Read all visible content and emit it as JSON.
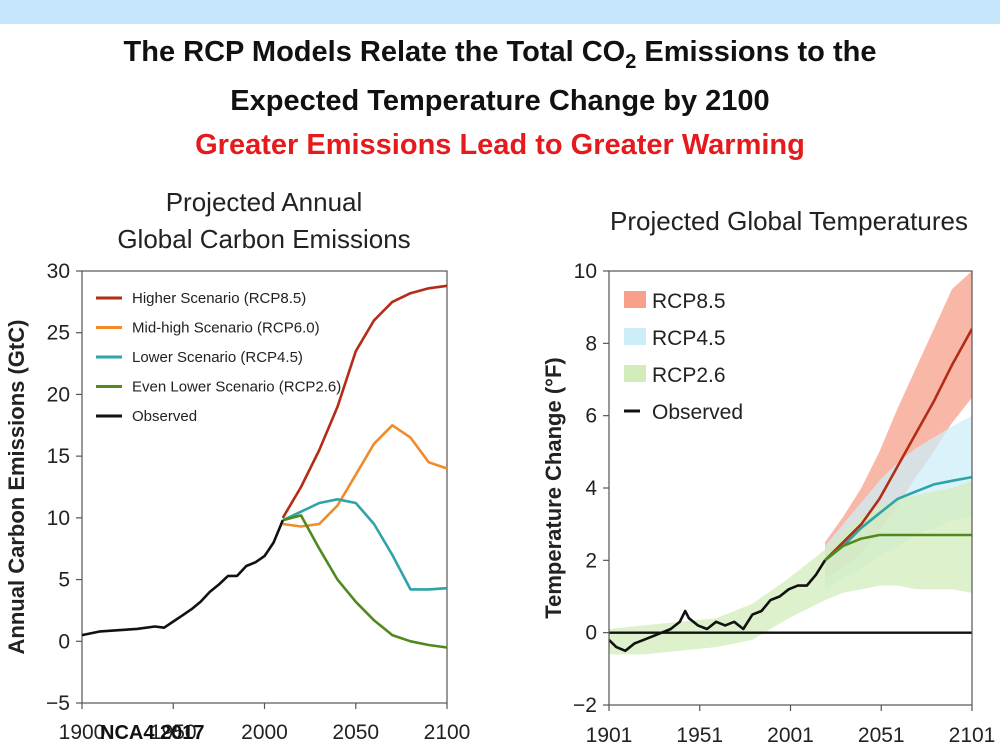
{
  "header": {
    "title_line1_pre": "The RCP Models Relate the Total CO",
    "title_sub": "2",
    "title_line1_post": " Emissions to the",
    "title_line2": "Expected Temperature Change by 2100",
    "subtitle": "Greater Emissions Lead to Greater Warming"
  },
  "colors": {
    "band": "#c6e7fb",
    "subtitle": "#e41a1c",
    "rcp85": "#b22d16",
    "rcp60": "#f28a2a",
    "rcp45": "#2ea3a8",
    "rcp26": "#4f8a1e",
    "observed": "#111111"
  },
  "credit": "NCA4 2017",
  "chart_data": [
    {
      "type": "line",
      "title_line1": "Projected Annual",
      "title_line2": "Global Carbon Emissions",
      "xlabel": "",
      "ylabel": "Annual Carbon Emissions (GtC)",
      "xlim": [
        1900,
        2100
      ],
      "ylim": [
        -5,
        30
      ],
      "xticks": [
        1900,
        1950,
        2000,
        2050,
        2100
      ],
      "yticks": [
        -5,
        0,
        5,
        10,
        15,
        20,
        25,
        30
      ],
      "ytick_labels": [
        "−5",
        "0",
        "5",
        "10",
        "15",
        "20",
        "25",
        "30"
      ],
      "grid": false,
      "legend_position": "top-left",
      "series": [
        {
          "name": "Higher Scenario (RCP8.5)",
          "color": "#b22d16",
          "x": [
            2010,
            2020,
            2030,
            2040,
            2050,
            2060,
            2070,
            2080,
            2090,
            2100
          ],
          "y": [
            10.0,
            12.5,
            15.5,
            19.0,
            23.5,
            26.0,
            27.5,
            28.2,
            28.6,
            28.8
          ]
        },
        {
          "name": "Mid-high Scenario (RCP6.0)",
          "color": "#f28a2a",
          "x": [
            2010,
            2020,
            2030,
            2040,
            2050,
            2060,
            2070,
            2080,
            2090,
            2100
          ],
          "y": [
            9.5,
            9.3,
            9.5,
            11.0,
            13.5,
            16.0,
            17.5,
            16.5,
            14.5,
            14.0
          ]
        },
        {
          "name": "Lower Scenario (RCP4.5)",
          "color": "#2ea3a8",
          "x": [
            2010,
            2020,
            2030,
            2040,
            2050,
            2060,
            2070,
            2080,
            2090,
            2100
          ],
          "y": [
            9.8,
            10.5,
            11.2,
            11.5,
            11.2,
            9.5,
            7.0,
            4.2,
            4.2,
            4.3
          ]
        },
        {
          "name": "Even Lower Scenario (RCP2.6)",
          "color": "#4f8a1e",
          "x": [
            2010,
            2020,
            2030,
            2040,
            2050,
            2060,
            2070,
            2080,
            2090,
            2100
          ],
          "y": [
            9.8,
            10.2,
            7.5,
            5.0,
            3.2,
            1.7,
            0.5,
            0.0,
            -0.3,
            -0.5
          ]
        },
        {
          "name": "Observed",
          "color": "#111111",
          "x": [
            1900,
            1910,
            1920,
            1930,
            1940,
            1945,
            1950,
            1955,
            1960,
            1965,
            1970,
            1975,
            1980,
            1985,
            1990,
            1995,
            2000,
            2005,
            2010
          ],
          "y": [
            0.5,
            0.8,
            0.9,
            1.0,
            1.2,
            1.1,
            1.6,
            2.1,
            2.6,
            3.2,
            4.0,
            4.6,
            5.3,
            5.3,
            6.1,
            6.4,
            6.9,
            8.0,
            9.8
          ]
        }
      ]
    },
    {
      "type": "line",
      "title": "Projected Global Temperatures",
      "xlabel": "",
      "ylabel": "Temperature Change (°F)",
      "xlim": [
        1901,
        2101
      ],
      "ylim": [
        -2,
        10
      ],
      "xticks": [
        1901,
        1951,
        2001,
        2051,
        2101
      ],
      "yticks": [
        -2,
        0,
        2,
        4,
        6,
        8,
        10
      ],
      "ytick_labels": [
        "−2",
        "0",
        "2",
        "4",
        "6",
        "8",
        "10"
      ],
      "grid": false,
      "legend_position": "top-left",
      "bands": [
        {
          "name": "RCP8.5",
          "color": "#f7a08a",
          "x": [
            2020,
            2030,
            2040,
            2050,
            2060,
            2070,
            2080,
            2090,
            2101
          ],
          "lower": [
            1.5,
            1.8,
            2.2,
            2.8,
            3.5,
            4.3,
            5.0,
            5.8,
            6.5
          ],
          "upper": [
            2.5,
            3.2,
            4.0,
            5.0,
            6.2,
            7.3,
            8.4,
            9.5,
            10.0
          ]
        },
        {
          "name": "RCP4.5",
          "color": "#cdeef8",
          "x": [
            2020,
            2030,
            2040,
            2050,
            2060,
            2070,
            2080,
            2090,
            2101
          ],
          "lower": [
            1.2,
            1.5,
            1.8,
            2.1,
            2.4,
            2.7,
            2.9,
            3.1,
            3.2
          ],
          "upper": [
            2.4,
            3.0,
            3.6,
            4.2,
            4.7,
            5.1,
            5.4,
            5.7,
            6.0
          ]
        },
        {
          "name": "RCP2.6",
          "color": "#d3ecbc",
          "x": [
            1901,
            1920,
            1940,
            1960,
            1980,
            2000,
            2020,
            2030,
            2040,
            2050,
            2060,
            2070,
            2080,
            2090,
            2101
          ],
          "lower": [
            -0.6,
            -0.6,
            -0.5,
            -0.4,
            -0.2,
            0.4,
            0.9,
            1.1,
            1.2,
            1.3,
            1.3,
            1.2,
            1.2,
            1.2,
            1.1
          ],
          "upper": [
            0.1,
            0.2,
            0.3,
            0.4,
            0.8,
            1.5,
            2.3,
            2.8,
            3.2,
            3.5,
            3.7,
            3.8,
            3.9,
            4.0,
            4.2
          ]
        }
      ],
      "series": [
        {
          "name": "RCP8.5",
          "color": "#b22d16",
          "x": [
            2020,
            2030,
            2040,
            2050,
            2060,
            2070,
            2080,
            2090,
            2101
          ],
          "y": [
            2.0,
            2.5,
            3.0,
            3.7,
            4.6,
            5.5,
            6.4,
            7.4,
            8.4
          ]
        },
        {
          "name": "RCP4.5",
          "color": "#2ea3a8",
          "x": [
            2020,
            2030,
            2040,
            2050,
            2060,
            2070,
            2080,
            2090,
            2101
          ],
          "y": [
            2.0,
            2.4,
            2.9,
            3.3,
            3.7,
            3.9,
            4.1,
            4.2,
            4.3
          ]
        },
        {
          "name": "RCP2.6",
          "color": "#4f8a1e",
          "x": [
            2020,
            2030,
            2040,
            2050,
            2060,
            2070,
            2080,
            2090,
            2101
          ],
          "y": [
            2.0,
            2.4,
            2.6,
            2.7,
            2.7,
            2.7,
            2.7,
            2.7,
            2.7
          ]
        },
        {
          "name": "Observed",
          "color": "#111111",
          "x": [
            1901,
            1905,
            1910,
            1915,
            1920,
            1925,
            1930,
            1935,
            1940,
            1943,
            1945,
            1950,
            1955,
            1960,
            1965,
            1970,
            1975,
            1980,
            1985,
            1990,
            1995,
            2000,
            2005,
            2010,
            2015,
            2020
          ],
          "y": [
            -0.2,
            -0.4,
            -0.5,
            -0.3,
            -0.2,
            -0.1,
            0.0,
            0.1,
            0.3,
            0.6,
            0.4,
            0.2,
            0.1,
            0.3,
            0.2,
            0.3,
            0.1,
            0.5,
            0.6,
            0.9,
            1.0,
            1.2,
            1.3,
            1.3,
            1.6,
            2.0
          ]
        }
      ],
      "reference_line": {
        "y": 0,
        "color": "#111111"
      },
      "legend": [
        "RCP8.5",
        "RCP4.5",
        "RCP2.6",
        "Observed"
      ]
    }
  ]
}
